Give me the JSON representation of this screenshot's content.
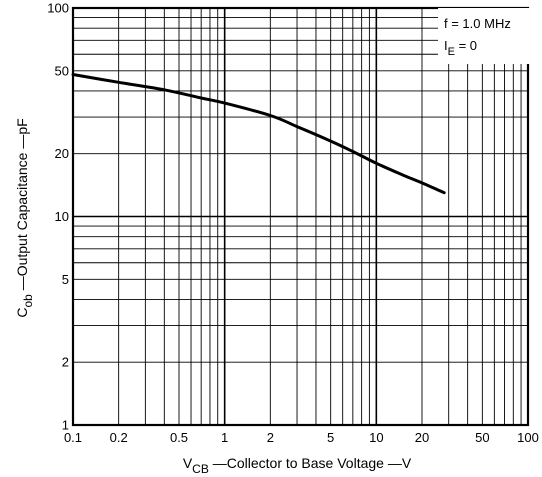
{
  "chart_data": {
    "type": "line",
    "x_scale": "log",
    "y_scale": "log",
    "xlim": [
      0.1,
      100
    ],
    "ylim": [
      1,
      100
    ],
    "grid": true,
    "x_ticks": [
      {
        "value": 0.1,
        "label": "0.1"
      },
      {
        "value": 0.2,
        "label": "0.2"
      },
      {
        "value": 0.5,
        "label": "0.5"
      },
      {
        "value": 1,
        "label": "1"
      },
      {
        "value": 2,
        "label": "2"
      },
      {
        "value": 5,
        "label": "5"
      },
      {
        "value": 10,
        "label": "10"
      },
      {
        "value": 20,
        "label": "20"
      },
      {
        "value": 50,
        "label": "50"
      },
      {
        "value": 100,
        "label": "100"
      }
    ],
    "y_ticks": [
      {
        "value": 1,
        "label": "1"
      },
      {
        "value": 2,
        "label": "2"
      },
      {
        "value": 5,
        "label": "5"
      },
      {
        "value": 10,
        "label": "10"
      },
      {
        "value": 20,
        "label": "20"
      },
      {
        "value": 50,
        "label": "50"
      },
      {
        "value": 100,
        "label": "100"
      }
    ],
    "xlabel": {
      "main": "V",
      "sub": "CB",
      "rest": " —Collector to Base Voltage —V"
    },
    "ylabel": {
      "main": "C",
      "sub": "ob",
      "rest": " —Output Capacitance —pF"
    },
    "annotations": {
      "line1": "f = 1.0  MHz",
      "line2_main": "I",
      "line2_sub": "E",
      "line2_rest": " = 0"
    },
    "series": [
      {
        "x": [
          0.1,
          0.2,
          0.4,
          0.7,
          1.0,
          2.0,
          3.0,
          5.0,
          7.0,
          10,
          15,
          20,
          28
        ],
        "y": [
          48,
          44,
          40.5,
          37,
          35,
          30.5,
          27,
          23,
          20.5,
          18,
          15.8,
          14.5,
          13
        ]
      }
    ]
  }
}
